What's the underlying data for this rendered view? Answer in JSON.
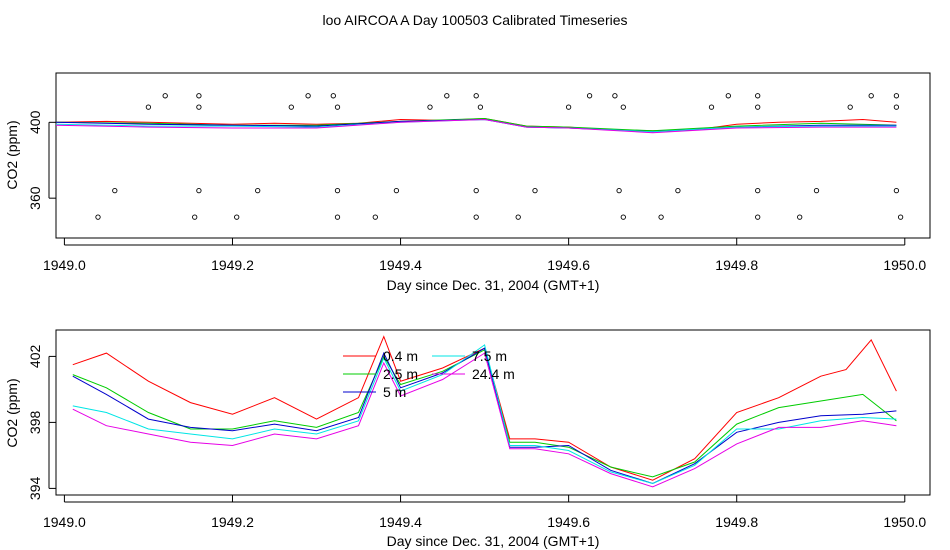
{
  "page_title": "loo AIRCOA A  Day 100503  Calibrated Timeseries",
  "chart_data": [
    {
      "type": "scatter",
      "xlabel": "Day since Dec. 31, 2004 (GMT+1)",
      "ylabel": "CO2 (ppm)",
      "xlim": [
        1948.99,
        1950.03
      ],
      "ylim": [
        339,
        426
      ],
      "xticks": [
        1949.0,
        1949.2,
        1949.4,
        1949.6,
        1949.8,
        1950.0
      ],
      "xtick_labels": [
        "1949.0",
        "1949.2",
        "1949.4",
        "1949.6",
        "1949.8",
        "1950.0"
      ],
      "yticks": [
        360,
        400
      ],
      "ytick_labels": [
        "360",
        "400"
      ],
      "colors": [
        "#ff0000",
        "#00cc00",
        "#0000cc",
        "#00e5e5",
        "#e600e6"
      ],
      "series": [
        {
          "x": [
            1948.99,
            1949.05,
            1949.1,
            1949.15,
            1949.2,
            1949.25,
            1949.3,
            1949.35,
            1949.4,
            1949.45,
            1949.5,
            1949.55,
            1949.6,
            1949.65,
            1949.7,
            1949.75,
            1949.8,
            1949.85,
            1949.9,
            1949.95,
            1949.99
          ],
          "values": [
            400,
            400.5,
            400,
            399.5,
            399,
            399.5,
            399,
            399.5,
            401.5,
            401,
            402,
            398,
            397.5,
            396,
            395.5,
            396,
            399,
            400,
            400.5,
            401.5,
            400
          ]
        },
        {
          "x": [
            1948.99,
            1949.1,
            1949.2,
            1949.3,
            1949.4,
            1949.5,
            1949.55,
            1949.6,
            1949.7,
            1949.8,
            1949.9,
            1949.99
          ],
          "values": [
            400,
            399.5,
            398.5,
            398.5,
            400.5,
            402,
            398,
            397.5,
            395.5,
            398,
            399.5,
            398.5
          ]
        },
        {
          "x": [
            1948.99,
            1949.1,
            1949.2,
            1949.3,
            1949.4,
            1949.5,
            1949.55,
            1949.6,
            1949.7,
            1949.8,
            1949.9,
            1949.99
          ],
          "values": [
            400,
            399,
            398.5,
            398,
            400.5,
            401.5,
            397.5,
            397,
            395,
            397.5,
            398.5,
            398.5
          ]
        },
        {
          "x": [
            1948.99,
            1949.1,
            1949.2,
            1949.3,
            1949.4,
            1949.5,
            1949.55,
            1949.6,
            1949.7,
            1949.8,
            1949.9,
            1949.99
          ],
          "values": [
            399,
            398,
            398,
            397.5,
            400,
            401.5,
            397.5,
            397,
            395,
            397.5,
            398,
            398
          ]
        },
        {
          "x": [
            1948.99,
            1949.1,
            1949.2,
            1949.3,
            1949.4,
            1949.5,
            1949.55,
            1949.6,
            1949.7,
            1949.8,
            1949.9,
            1949.99
          ],
          "values": [
            398.5,
            397.5,
            397,
            397,
            400,
            401.5,
            397.5,
            397,
            394.5,
            397,
            397.5,
            397.5
          ]
        }
      ],
      "points": {
        "x": [
          1949.12,
          1949.16,
          1949.29,
          1949.32,
          1949.455,
          1949.49,
          1949.625,
          1949.655,
          1949.79,
          1949.825,
          1949.96,
          1949.99,
          1949.1,
          1949.16,
          1949.27,
          1949.325,
          1949.435,
          1949.495,
          1949.6,
          1949.665,
          1949.77,
          1949.825,
          1949.935,
          1949.99,
          1949.06,
          1949.16,
          1949.23,
          1949.325,
          1949.395,
          1949.49,
          1949.56,
          1949.66,
          1949.73,
          1949.825,
          1949.895,
          1949.99,
          1949.04,
          1949.155,
          1949.205,
          1949.325,
          1949.37,
          1949.49,
          1949.54,
          1949.665,
          1949.71,
          1949.825,
          1949.875,
          1949.995
        ],
        "values": [
          414,
          414,
          414,
          414,
          414,
          414,
          414,
          414,
          414,
          414,
          414,
          414,
          408,
          408,
          408,
          408,
          408,
          408,
          408,
          408,
          408,
          408,
          408,
          408,
          364,
          364,
          364,
          364,
          364,
          364,
          364,
          364,
          364,
          364,
          364,
          364,
          350,
          350,
          350,
          350,
          350,
          350,
          350,
          350,
          350,
          350,
          350,
          350
        ]
      }
    },
    {
      "type": "line",
      "xlabel": "Day since Dec. 31, 2004 (GMT+1)",
      "ylabel": "CO2 (ppm)",
      "xlim": [
        1948.99,
        1950.03
      ],
      "ylim": [
        393.6,
        403.6
      ],
      "xticks": [
        1949.0,
        1949.2,
        1949.4,
        1949.6,
        1949.8,
        1950.0
      ],
      "xtick_labels": [
        "1949.0",
        "1949.2",
        "1949.4",
        "1949.6",
        "1949.8",
        "1950.0"
      ],
      "yticks": [
        394,
        398,
        402
      ],
      "ytick_labels": [
        "394",
        "398",
        "402"
      ],
      "legend": [
        {
          "name": "0.4 m",
          "color": "#ff0000"
        },
        {
          "name": "2.5 m",
          "color": "#00cc00"
        },
        {
          "name": "5 m",
          "color": "#0000cc"
        },
        {
          "name": "7.5 m",
          "color": "#00e5e5"
        },
        {
          "name": "24.4 m",
          "color": "#e600e6"
        }
      ],
      "series": [
        {
          "name": "0.4 m",
          "color": "#ff0000",
          "x": [
            1949.01,
            1949.05,
            1949.1,
            1949.15,
            1949.2,
            1949.25,
            1949.3,
            1949.35,
            1949.38,
            1949.4,
            1949.45,
            1949.5,
            1949.53,
            1949.56,
            1949.6,
            1949.65,
            1949.7,
            1949.75,
            1949.8,
            1949.85,
            1949.9,
            1949.93,
            1949.96,
            1949.99
          ],
          "values": [
            401.5,
            402.2,
            400.5,
            399.2,
            398.5,
            399.5,
            398.2,
            399.5,
            403.2,
            400.5,
            401.3,
            402.5,
            397,
            397,
            396.8,
            395.3,
            394.5,
            395.8,
            398.6,
            399.5,
            400.8,
            401.2,
            403,
            399.9
          ]
        },
        {
          "name": "2.5 m",
          "color": "#00cc00",
          "x": [
            1949.01,
            1949.05,
            1949.1,
            1949.15,
            1949.2,
            1949.25,
            1949.3,
            1949.35,
            1949.38,
            1949.4,
            1949.45,
            1949.5,
            1949.53,
            1949.56,
            1949.6,
            1949.65,
            1949.7,
            1949.75,
            1949.8,
            1949.85,
            1949.9,
            1949.95,
            1949.99
          ],
          "values": [
            400.9,
            400.1,
            398.6,
            397.6,
            397.6,
            398.1,
            397.7,
            398.6,
            402.0,
            400.3,
            401.1,
            402.4,
            396.8,
            396.8,
            396.5,
            395.3,
            394.7,
            395.6,
            397.9,
            398.9,
            399.3,
            399.7,
            398.1
          ]
        },
        {
          "name": "5 m",
          "color": "#0000cc",
          "x": [
            1949.01,
            1949.05,
            1949.1,
            1949.15,
            1949.2,
            1949.25,
            1949.3,
            1949.35,
            1949.38,
            1949.4,
            1949.45,
            1949.5,
            1949.53,
            1949.56,
            1949.6,
            1949.65,
            1949.7,
            1949.75,
            1949.8,
            1949.85,
            1949.9,
            1949.95,
            1949.99
          ],
          "values": [
            400.8,
            399.7,
            398.2,
            397.7,
            397.5,
            397.9,
            397.5,
            398.3,
            402.2,
            400.1,
            401.0,
            402.5,
            396.5,
            396.5,
            396.6,
            395.1,
            394.3,
            395.5,
            397.4,
            398.0,
            398.4,
            398.5,
            398.7
          ]
        },
        {
          "name": "7.5 m",
          "color": "#00e5e5",
          "x": [
            1949.01,
            1949.05,
            1949.1,
            1949.15,
            1949.2,
            1949.25,
            1949.3,
            1949.35,
            1949.38,
            1949.4,
            1949.45,
            1949.5,
            1949.53,
            1949.56,
            1949.6,
            1949.65,
            1949.7,
            1949.75,
            1949.8,
            1949.85,
            1949.9,
            1949.95,
            1949.99
          ],
          "values": [
            399.0,
            398.6,
            397.6,
            397.3,
            397.0,
            397.6,
            397.3,
            398.1,
            401.9,
            399.9,
            400.9,
            402.7,
            396.6,
            396.6,
            396.3,
            395.0,
            394.3,
            395.4,
            397.6,
            397.6,
            398.1,
            398.3,
            398.2
          ]
        },
        {
          "name": "24.4 m",
          "color": "#e600e6",
          "x": [
            1949.01,
            1949.05,
            1949.1,
            1949.15,
            1949.2,
            1949.25,
            1949.3,
            1949.35,
            1949.38,
            1949.4,
            1949.45,
            1949.5,
            1949.53,
            1949.56,
            1949.6,
            1949.65,
            1949.7,
            1949.75,
            1949.8,
            1949.85,
            1949.9,
            1949.95,
            1949.99
          ],
          "values": [
            398.8,
            397.8,
            397.3,
            396.8,
            396.6,
            397.3,
            397.0,
            397.8,
            401.6,
            399.6,
            400.6,
            402.2,
            396.4,
            396.4,
            396.1,
            394.9,
            394.1,
            395.2,
            396.7,
            397.7,
            397.7,
            398.1,
            397.8
          ]
        }
      ]
    }
  ]
}
